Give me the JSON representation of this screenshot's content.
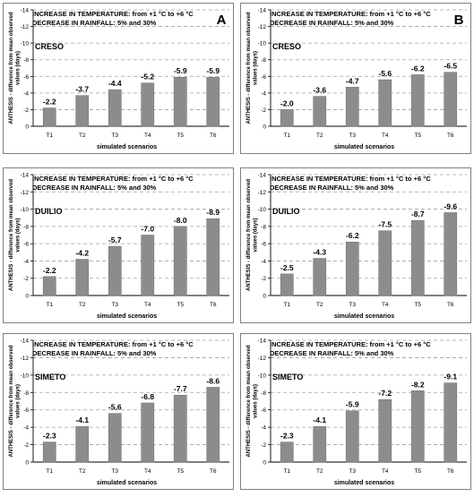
{
  "header_lines": [
    "INCREASE IN TEMPERATURE: from +1 °C to +6 °C",
    "DECREASE IN RAINFALL: 5% and 30%"
  ],
  "chart_data": [
    {
      "type": "bar",
      "panel_letter": "A",
      "cultivar": "CRESO",
      "categories": [
        "T1",
        "T2",
        "T3",
        "T4",
        "T5",
        "T6"
      ],
      "values": [
        -2.2,
        -3.7,
        -4.4,
        -5.2,
        -5.9,
        -5.9
      ],
      "data_labels": [
        "-2.2",
        "-3.7",
        "-4.4",
        "-5.2",
        "-5.9",
        "-5.9"
      ],
      "xlabel": "simulated scenarios",
      "ylabel": "ANTHESIS - difference from mean observed values (days)",
      "ylim": [
        0,
        -14
      ],
      "yticks": [
        0,
        -2,
        -4,
        -6,
        -8,
        -10,
        -12,
        -14
      ],
      "grid": true
    },
    {
      "type": "bar",
      "panel_letter": "B",
      "cultivar": "CRESO",
      "categories": [
        "T1",
        "T2",
        "T3",
        "T4",
        "T5",
        "T6"
      ],
      "values": [
        -2.0,
        -3.6,
        -4.7,
        -5.6,
        -6.2,
        -6.5
      ],
      "data_labels": [
        "-2.0",
        "-3.6",
        "-4.7",
        "-5.6",
        "-6.2",
        "-6.5"
      ],
      "xlabel": "simulated scenarios",
      "ylabel": "ANTHESIS - difference from mean observed values (days)",
      "ylim": [
        0,
        -14
      ],
      "yticks": [
        0,
        -2,
        -4,
        -6,
        -8,
        -10,
        -12,
        -14
      ],
      "grid": true
    },
    {
      "type": "bar",
      "panel_letter": "",
      "cultivar": "DUILIO",
      "categories": [
        "T1",
        "T2",
        "T3",
        "T4",
        "T5",
        "T6"
      ],
      "values": [
        -2.2,
        -4.2,
        -5.7,
        -7.0,
        -8.0,
        -8.9
      ],
      "data_labels": [
        "-2.2",
        "-4.2",
        "-5.7",
        "-7.0",
        "-8.0",
        "-8.9"
      ],
      "xlabel": "simulated scenarios",
      "ylabel": "ANTHESIS - difference from mean observed values (days)",
      "ylim": [
        0,
        -14
      ],
      "yticks": [
        0,
        -2,
        -4,
        -6,
        -8,
        -10,
        -12,
        -14
      ],
      "grid": true
    },
    {
      "type": "bar",
      "panel_letter": "",
      "cultivar": "DUILIO",
      "categories": [
        "T1",
        "T2",
        "T3",
        "T4",
        "T5",
        "T6"
      ],
      "values": [
        -2.5,
        -4.3,
        -6.2,
        -7.5,
        -8.7,
        -9.6
      ],
      "data_labels": [
        "-2.5",
        "-4.3",
        "-6.2",
        "-7.5",
        "-8.7",
        "-9.6"
      ],
      "xlabel": "simulated scenarios",
      "ylabel": "ANTHESIS - difference from mean observed values (days)",
      "ylim": [
        0,
        -14
      ],
      "yticks": [
        0,
        -2,
        -4,
        -6,
        -8,
        -10,
        -12,
        -14
      ],
      "grid": true
    },
    {
      "type": "bar",
      "panel_letter": "",
      "cultivar": "SIMETO",
      "categories": [
        "T1",
        "T2",
        "T3",
        "T4",
        "T5",
        "T6"
      ],
      "values": [
        -2.3,
        -4.1,
        -5.6,
        -6.8,
        -7.7,
        -8.6
      ],
      "data_labels": [
        "-2.3",
        "-4.1",
        "-5.6",
        "-6.8",
        "-7.7",
        "-8.6"
      ],
      "xlabel": "simulated scenarios",
      "ylabel": "ANTHESIS - difference from mean observed values (days)",
      "ylim": [
        0,
        -14
      ],
      "yticks": [
        0,
        -2,
        -4,
        -6,
        -8,
        -10,
        -12,
        -14
      ],
      "grid": true
    },
    {
      "type": "bar",
      "panel_letter": "",
      "cultivar": "SIMETO",
      "categories": [
        "T1",
        "T2",
        "T3",
        "T4",
        "T5",
        "T6"
      ],
      "values": [
        -2.3,
        -4.1,
        -5.9,
        -7.2,
        -8.2,
        -9.1
      ],
      "data_labels": [
        "-2.3",
        "-4.1",
        "-5.9",
        "-7.2",
        "-8.2",
        "-9.1"
      ],
      "xlabel": "simulated scenarios",
      "ylabel": "ANTHESIS - difference from mean observed values (days)",
      "ylim": [
        0,
        -14
      ],
      "yticks": [
        0,
        -2,
        -4,
        -6,
        -8,
        -10,
        -12,
        -14
      ],
      "grid": true
    }
  ],
  "colors": {
    "bar": "#8c8c8c",
    "grid": "#a0a0a0",
    "frame": "#808080",
    "text": "#000000"
  }
}
